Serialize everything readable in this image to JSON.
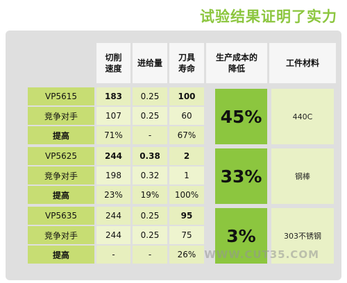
{
  "title": "试验结果证明了实力",
  "headers": {
    "speed": "切削\n速度",
    "feed": "进给量",
    "life": "刀具\n寿命",
    "cost": "生产成本的\n降低",
    "material": "工件材料"
  },
  "blocks": [
    {
      "rows": [
        {
          "label": "VP5615",
          "speed": "183",
          "feed": "0.25",
          "life": "100"
        },
        {
          "label": "竞争对手",
          "speed": "107",
          "feed": "0.25",
          "life": "60"
        },
        {
          "label": "提高",
          "speed": "71%",
          "feed": "-",
          "life": "67%"
        }
      ],
      "cost": "45%",
      "material": "440C"
    },
    {
      "rows": [
        {
          "label": "VP5625",
          "speed": "244",
          "feed": "0.38",
          "life": "2"
        },
        {
          "label": "竞争对手",
          "speed": "198",
          "feed": "0.32",
          "life": "1"
        },
        {
          "label": "提高",
          "speed": "23%",
          "feed": "19%",
          "life": "100%"
        }
      ],
      "cost": "33%",
      "material": "钢棒"
    },
    {
      "rows": [
        {
          "label": "VP5635",
          "speed": "244",
          "feed": "0.25",
          "life": "95"
        },
        {
          "label": "竞争对手",
          "speed": "244",
          "feed": "0.25",
          "life": "75"
        },
        {
          "label": "提高",
          "speed": "-",
          "feed": "-",
          "life": "26%"
        }
      ],
      "cost": "3%",
      "material": "303不锈钢"
    }
  ],
  "watermark": "WWW.CUT35.COM"
}
